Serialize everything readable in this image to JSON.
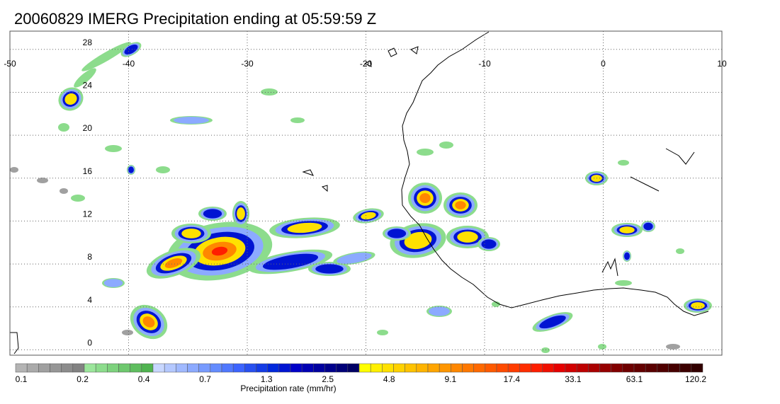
{
  "header": {
    "title": "20060829 IMERG Precipitation ending at 05:59:59 Z"
  },
  "map": {
    "lon_range": [
      -50,
      10
    ],
    "lat_range": [
      -0.5,
      29.7
    ],
    "lon_labels": [
      "-50",
      "-40",
      "-30",
      "-20",
      "-10",
      "0",
      "10"
    ],
    "lat_labels": [
      "0",
      "4",
      "8",
      "12",
      "16",
      "20",
      "24",
      "28"
    ],
    "grid_style": "dotted",
    "region": "Tropical Atlantic and West Africa"
  },
  "colorbar": {
    "label": "Precipitation rate (mm/hr)",
    "tick_labels": [
      "0.1",
      "0.2",
      "0.4",
      "0.7",
      "1.3",
      "2.5",
      "4.8",
      "9.1",
      "17.4",
      "33.1",
      "63.1",
      "120.2"
    ],
    "colors": [
      "#b4b4b4",
      "#aaaaaa",
      "#a0a0a0",
      "#969696",
      "#8c8c8c",
      "#828282",
      "#9be69b",
      "#8cdc8c",
      "#7dd27d",
      "#6ec86e",
      "#5fbe5f",
      "#50b450",
      "#c8d7ff",
      "#b4c8ff",
      "#a0b9ff",
      "#8caaff",
      "#789bff",
      "#648cff",
      "#5078ff",
      "#3c64ff",
      "#2850f0",
      "#143ce6",
      "#0028dc",
      "#0014d2",
      "#0000c8",
      "#0000b4",
      "#0000a0",
      "#00008c",
      "#000078",
      "#000064",
      "#ffff00",
      "#fff000",
      "#ffe100",
      "#ffd200",
      "#ffc300",
      "#ffb400",
      "#ffa500",
      "#ff9600",
      "#ff8700",
      "#ff7800",
      "#ff6900",
      "#ff5a00",
      "#ff4b00",
      "#ff3c00",
      "#ff2d00",
      "#ff1e00",
      "#f00f00",
      "#e60000",
      "#d20000",
      "#be0000",
      "#aa0000",
      "#960000",
      "#820000",
      "#6e0000",
      "#640000",
      "#5a0000",
      "#500000",
      "#460000",
      "#3c0000",
      "#320000"
    ]
  },
  "precip_levels": {
    "light": "#8cdc8c",
    "gray": "#a0a0a0",
    "lightblue": "#8caaff",
    "blue": "#0014d2",
    "yellow": "#ffe100",
    "orange": "#ff8700",
    "red": "#ff1e00",
    "darkred": "#aa0000"
  }
}
